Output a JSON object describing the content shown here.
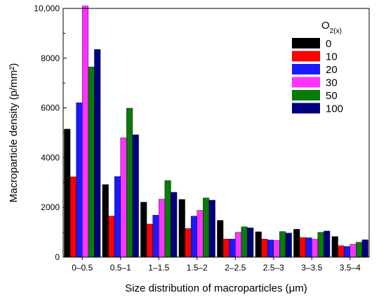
{
  "chart_data": {
    "type": "bar",
    "xlabel": "Size distribution of macroparticles (μm)",
    "ylabel": "Macroparticle density (p/mm²)",
    "ylim": [
      0,
      10000
    ],
    "y_ticks": [
      "0",
      "2000",
      "4000",
      "6000",
      "8000",
      "10,000"
    ],
    "legend_title_main": "O",
    "legend_title_sub": "2(x)",
    "legend_position": "top-right",
    "grid": false,
    "categories": [
      "0–0.5",
      "0.5–1",
      "1–1.5",
      "1.5–2",
      "2–2.5",
      "2.5–3",
      "3–3.5",
      "3.5–4"
    ],
    "series": [
      {
        "name": "0",
        "color": "#000000",
        "values": [
          5150,
          2920,
          2210,
          2320,
          1480,
          1020,
          1120,
          830
        ]
      },
      {
        "name": "10",
        "color": "#ff0000",
        "values": [
          3230,
          1650,
          1330,
          1150,
          730,
          730,
          790,
          460
        ]
      },
      {
        "name": "20",
        "color": "#1a1aff",
        "values": [
          6210,
          3240,
          1690,
          1650,
          730,
          690,
          780,
          430
        ]
      },
      {
        "name": "30",
        "color": "#ff33ff",
        "values": [
          10100,
          4800,
          2330,
          1880,
          1000,
          670,
          720,
          520
        ]
      },
      {
        "name": "50",
        "color": "#0a7a0a",
        "values": [
          7650,
          5990,
          3080,
          2380,
          1220,
          1030,
          1000,
          600
        ]
      },
      {
        "name": "100",
        "color": "#00007f",
        "values": [
          8350,
          4920,
          2610,
          2290,
          1180,
          970,
          1050,
          700
        ]
      }
    ]
  }
}
